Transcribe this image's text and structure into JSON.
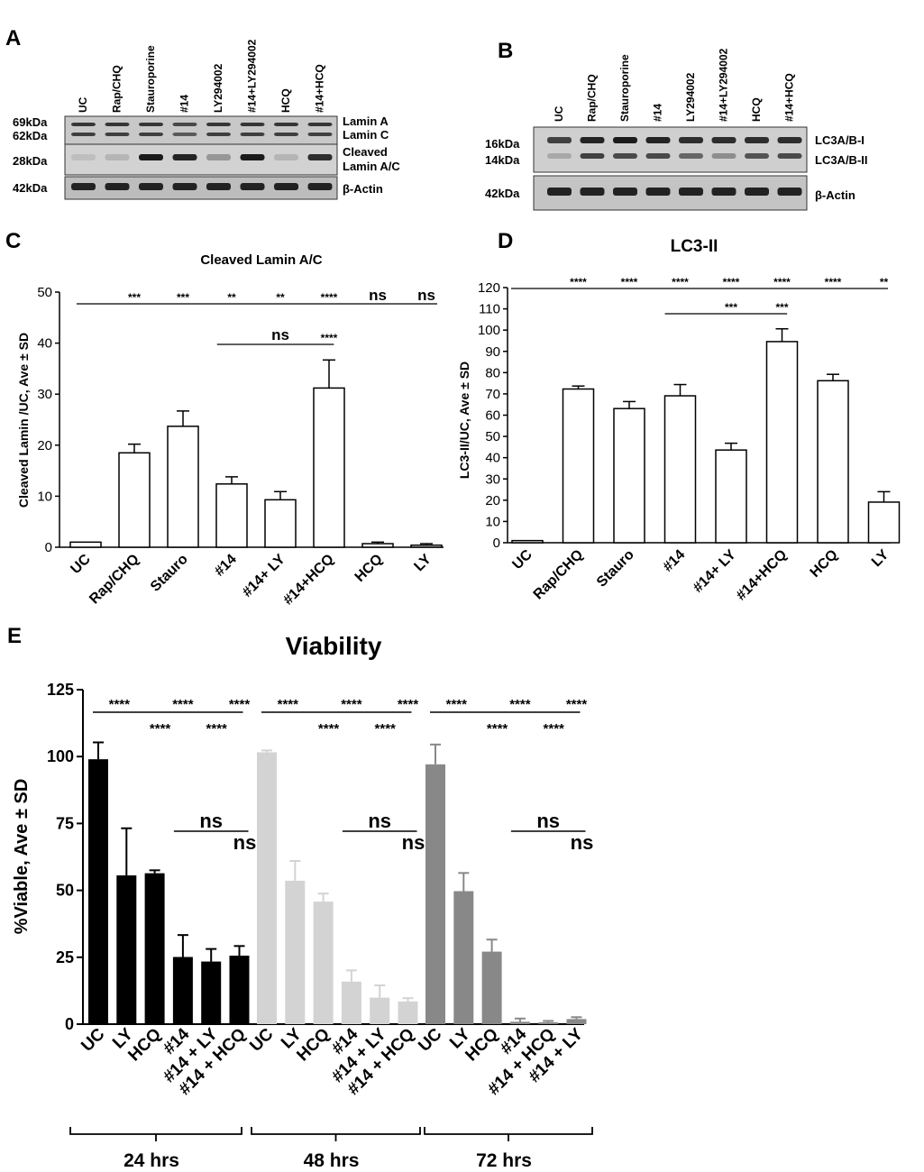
{
  "panels": {
    "A": "A",
    "B": "B",
    "C": "C",
    "D": "D",
    "E": "E"
  },
  "blot_a": {
    "lanes": [
      "UC",
      "Rap/CHQ",
      "Stauroporine",
      "#14",
      "LY294002",
      "#14+LY294002",
      "HCQ",
      "#14+HCQ"
    ],
    "kda": [
      "69kDa",
      "62kDa",
      "28kDa",
      "42kDa"
    ],
    "bands": [
      "Lamin A",
      "Lamin C",
      "Cleaved",
      "Lamin A/C",
      "β-Actin"
    ]
  },
  "blot_b": {
    "lanes": [
      "UC",
      "Rap/CHQ",
      "Stauroporine",
      "#14",
      "LY294002",
      "#14+LY294002",
      "HCQ",
      "#14+HCQ"
    ],
    "kda": [
      "16kDa",
      "14kDa",
      "42kDa"
    ],
    "bands": [
      "LC3A/B-I",
      "LC3A/B-II",
      "β-Actin"
    ]
  },
  "chart_data": [
    {
      "panel": "C",
      "type": "bar",
      "title": "Cleaved Lamin A/C",
      "ylabel": "Cleaved Lamin /UC, Ave ± SD",
      "xlabel": "",
      "ylim": [
        0,
        50
      ],
      "yticks": [
        0,
        10,
        20,
        30,
        40,
        50
      ],
      "categories": [
        "UC",
        "Rap/CHQ",
        "Stauro",
        "#14",
        "#14+ LY",
        "#14+HCQ",
        "HCQ",
        "LY"
      ],
      "values": [
        1,
        18.5,
        23.7,
        12.4,
        9.3,
        31.2,
        0.7,
        0.4
      ],
      "errors": [
        0,
        1.7,
        3.0,
        1.4,
        1.6,
        5.5,
        0.3,
        0.3
      ],
      "sig_top": [
        "***",
        "***",
        "**",
        "**",
        "****",
        "ns",
        "ns"
      ],
      "sig_second": [
        "ns",
        "****"
      ]
    },
    {
      "panel": "D",
      "type": "bar",
      "title": "LC3-II",
      "ylabel": "LC3-II/UC, Ave ± SD",
      "xlabel": "",
      "ylim": [
        0,
        120
      ],
      "yticks": [
        0,
        10,
        20,
        30,
        40,
        50,
        60,
        70,
        80,
        90,
        100,
        110,
        120
      ],
      "categories": [
        "UC",
        "Rap/CHQ",
        "Stauro",
        "#14",
        "#14+ LY",
        "#14+HCQ",
        "HCQ",
        "LY"
      ],
      "values": [
        1,
        72.3,
        63.1,
        69.1,
        43.6,
        94.6,
        76.2,
        19.1
      ],
      "errors": [
        0,
        1.4,
        3.3,
        5.3,
        3.2,
        6.0,
        3.0,
        4.9
      ],
      "sig_top": [
        "****",
        "****",
        "****",
        "****",
        "****",
        "****",
        "**"
      ],
      "sig_second": [
        "***",
        "***"
      ]
    },
    {
      "panel": "E",
      "type": "bar",
      "title": "Viability",
      "ylabel": "%Viable, Ave ± SD",
      "xlabel": "",
      "ylim": [
        0,
        125
      ],
      "yticks": [
        0,
        25,
        50,
        75,
        100,
        125
      ],
      "groups": [
        {
          "name": "24 hrs",
          "color": "#000000",
          "categories": [
            "UC",
            "LY",
            "HCQ",
            "#14",
            "#14 + LY",
            "#14 + HCQ"
          ],
          "values": [
            99,
            55.6,
            56.4,
            25.1,
            23.4,
            25.6
          ],
          "errors": [
            6.3,
            17.6,
            1.1,
            8.2,
            4.7,
            3.6
          ]
        },
        {
          "name": "48 hrs",
          "color": "#d3d3d3",
          "categories": [
            "UC",
            "LY",
            "HCQ",
            "#14",
            "#14 + LY",
            "#14 + HCQ"
          ],
          "values": [
            101.6,
            53.6,
            45.8,
            15.9,
            9.9,
            8.5
          ],
          "errors": [
            0.7,
            7.4,
            3.0,
            4.2,
            4.6,
            1.2
          ]
        },
        {
          "name": "72 hrs",
          "color": "#888888",
          "categories": [
            "UC",
            "LY",
            "HCQ",
            "#14",
            "#14 + HCQ",
            "#14 + LY"
          ],
          "values": [
            97.1,
            49.7,
            27.1,
            0.9,
            0.7,
            1.9
          ],
          "errors": [
            7.4,
            6.8,
            4.5,
            1.2,
            0.5,
            0.7
          ]
        }
      ],
      "sig_row1": "****",
      "sig_row2": "****",
      "ns_label": "ns"
    }
  ]
}
